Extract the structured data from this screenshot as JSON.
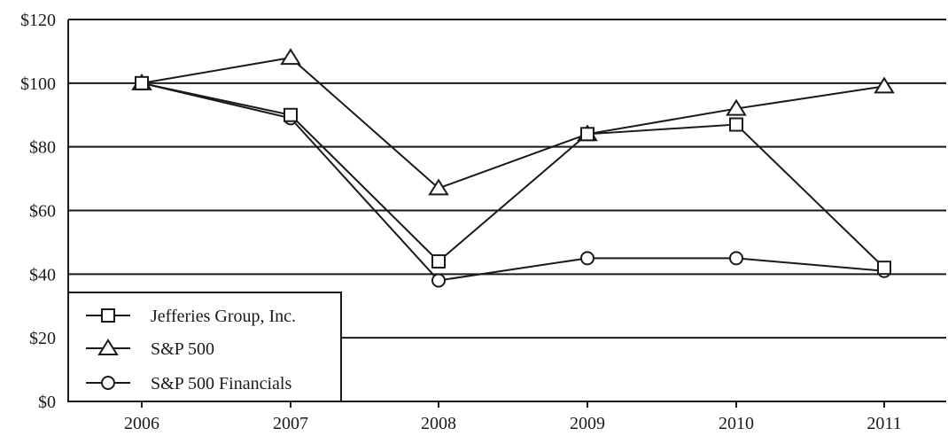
{
  "chart_data": {
    "type": "line",
    "x": [
      "2006",
      "2007",
      "2008",
      "2009",
      "2010",
      "2011"
    ],
    "ylim": [
      0,
      120
    ],
    "yticks": [
      "$0",
      "$20",
      "$40",
      "$60",
      "$80",
      "$100",
      "$120"
    ],
    "ytick_values": [
      0,
      20,
      40,
      60,
      80,
      100,
      120
    ],
    "grid": "horizontal",
    "legend_position": "bottom-left",
    "series": [
      {
        "name": "Jefferies Group, Inc.",
        "marker": "square",
        "values": [
          100,
          90,
          44,
          84,
          87,
          42
        ]
      },
      {
        "name": "S&P 500",
        "marker": "triangle",
        "values": [
          100,
          108,
          67,
          84,
          92,
          99
        ]
      },
      {
        "name": "S&P 500 Financials",
        "marker": "circle",
        "values": [
          100,
          89,
          38,
          45,
          45,
          41
        ]
      }
    ]
  }
}
